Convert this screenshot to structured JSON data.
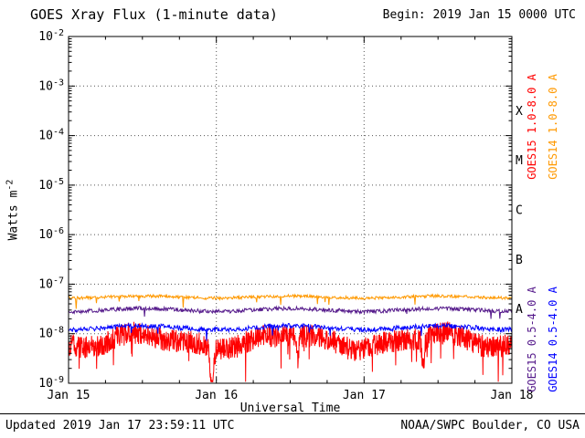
{
  "header": {
    "title": "GOES Xray Flux (1-minute data)",
    "begin_label": "Begin: 2019 Jan 15 0000 UTC"
  },
  "footer": {
    "updated": "Updated 2019 Jan 17 23:59:11 UTC",
    "source": "NOAA/SWPC Boulder, CO USA"
  },
  "chart_data": {
    "type": "line",
    "title": "GOES Xray Flux (1-minute data)",
    "xlabel": "Universal Time",
    "ylabel": "Watts m-2",
    "ylabel_base": "Watts m",
    "ylabel_sup": "-2",
    "begin": "2019 Jan 15 0000 UTC",
    "updated": "2019 Jan 17 23:59:11 UTC",
    "x_range_days": 3,
    "x_tick_labels": [
      "Jan 15",
      "Jan 16",
      "Jan 17",
      "Jan 18"
    ],
    "x_minor_tick_hours": 6,
    "y_log10_range": [
      -9,
      -2
    ],
    "y_tick_exponents": [
      -2,
      -3,
      -4,
      -5,
      -6,
      -7,
      -8,
      -9
    ],
    "grid_h_log10": [
      -3,
      -4,
      -5,
      -6,
      -7,
      -8
    ],
    "grid_v_days": [
      1,
      2
    ],
    "flare_classes": [
      {
        "label": "X",
        "log10_center": -3.5
      },
      {
        "label": "M",
        "log10_center": -4.5
      },
      {
        "label": "C",
        "log10_center": -5.5
      },
      {
        "label": "B",
        "log10_center": -6.5
      },
      {
        "label": "A",
        "log10_center": -7.5
      }
    ],
    "series": [
      {
        "name": "GOES15 1.0-8.0 A",
        "color": "#ff0000",
        "baseline_log10": -8.15,
        "noise_log10": 0.23,
        "modulation_log10": 0.13,
        "spiky": true,
        "legend_column": 0,
        "legend_row": "top"
      },
      {
        "name": "GOES14 1.0-8.0 A",
        "color": "#ff9900",
        "baseline_log10": -7.26,
        "noise_log10": 0.03,
        "modulation_log10": 0.02,
        "spiky": false,
        "legend_column": 1,
        "legend_row": "top"
      },
      {
        "name": "GOES15 0.5-4.0 A",
        "color": "#551a8b",
        "baseline_log10": -7.52,
        "noise_log10": 0.04,
        "modulation_log10": 0.03,
        "spiky": false,
        "legend_column": 0,
        "legend_row": "bottom"
      },
      {
        "name": "GOES14 0.5-4.0 A",
        "color": "#0000ff",
        "baseline_log10": -7.88,
        "noise_log10": 0.05,
        "modulation_log10": 0.04,
        "spiky": false,
        "legend_column": 1,
        "legend_row": "bottom"
      }
    ],
    "axis_color": "#000000",
    "grid_color": "#555555",
    "background_color": "#ffffff"
  }
}
